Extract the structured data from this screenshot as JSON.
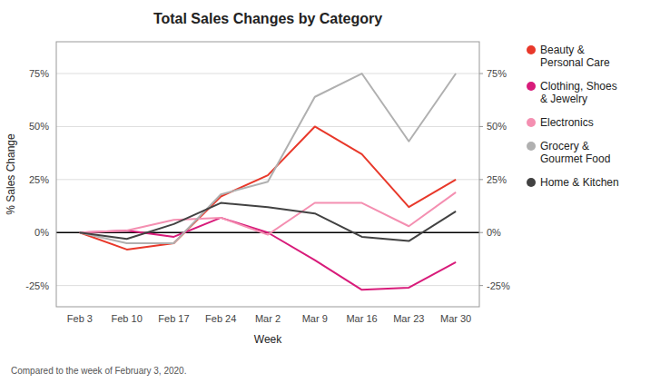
{
  "chart_data": {
    "type": "line",
    "title": "Total Sales Changes by Category",
    "xlabel": "Week",
    "ylabel": "% Sales Change",
    "footnote": "Compared to the week of February 3, 2020.",
    "categories": [
      "Feb 3",
      "Feb 10",
      "Feb 17",
      "Feb 24",
      "Mar 2",
      "Mar 9",
      "Mar 16",
      "Mar 23",
      "Mar 30"
    ],
    "series": [
      {
        "name": "Beauty &\nPersonal Care",
        "color": "#e8382a",
        "values": [
          0,
          -8,
          -5,
          17,
          27,
          50,
          37,
          12,
          25
        ]
      },
      {
        "name": "Clothing, Shoes\n& Jewelry",
        "color": "#d81b7a",
        "values": [
          0,
          1,
          -2,
          7,
          0,
          -13,
          -27,
          -26,
          -14
        ]
      },
      {
        "name": "Electronics",
        "color": "#f48fb1",
        "values": [
          0,
          1,
          6,
          7,
          -1,
          14,
          14,
          3,
          19
        ]
      },
      {
        "name": "Grocery &\nGourmet Food",
        "color": "#b0b0b0",
        "values": [
          0,
          -5,
          -5,
          18,
          24,
          64,
          75,
          43,
          75
        ]
      },
      {
        "name": "Home & Kitchen",
        "color": "#424242",
        "values": [
          0,
          -3,
          4,
          14,
          12,
          9,
          -2,
          -4,
          10
        ]
      }
    ],
    "ylim": [
      -35,
      90
    ],
    "yticks": [
      {
        "value": -25,
        "label": "-25%"
      },
      {
        "value": 0,
        "label": "0%"
      },
      {
        "value": 25,
        "label": "25%"
      },
      {
        "value": 50,
        "label": "50%"
      },
      {
        "value": 75,
        "label": "75%"
      }
    ],
    "y2lim": [
      -35,
      90
    ],
    "y2ticks": [
      {
        "value": -25,
        "label": "-25%"
      },
      {
        "value": 0,
        "label": "0%"
      },
      {
        "value": 25,
        "label": "25%"
      },
      {
        "value": 50,
        "label": "50%"
      },
      {
        "value": 75,
        "label": "75%"
      }
    ],
    "grid": true,
    "legend": "right"
  }
}
